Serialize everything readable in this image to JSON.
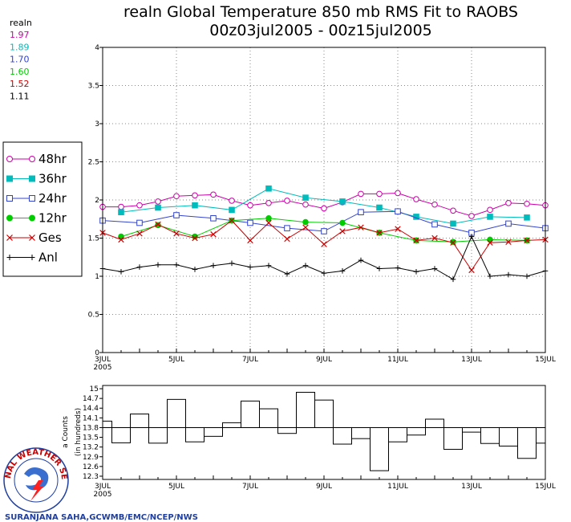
{
  "header": {
    "title_line1": "realn Global Temperature 850 mb RMS Fit to RAOBS",
    "title_line2": "00z03jul2005 - 00z15jul2005",
    "means_label": "realn",
    "means": [
      {
        "value": "1.97",
        "color": "#cc00aa"
      },
      {
        "value": "1.89",
        "color": "#00bcbc"
      },
      {
        "value": "1.70",
        "color": "#3344cc"
      },
      {
        "value": "1.60",
        "color": "#00cc00"
      },
      {
        "value": "1.52",
        "color": "#cc0000"
      },
      {
        "value": "1.11",
        "color": "#000000"
      }
    ]
  },
  "legend": {
    "items": [
      {
        "label": "48hr",
        "color": "#cc00aa",
        "marker": "open-circle"
      },
      {
        "label": "36hr",
        "color": "#00bcbc",
        "marker": "filled-square"
      },
      {
        "label": "24hr",
        "color": "#3344cc",
        "marker": "open-square"
      },
      {
        "label": "12hr",
        "color": "#00cc00",
        "marker": "filled-circle"
      },
      {
        "label": "Ges",
        "color": "#cc0000",
        "marker": "x"
      },
      {
        "label": "Anl",
        "color": "#000000",
        "marker": "plus"
      }
    ]
  },
  "credit": "SURANJANA SAHA,GCWMB/EMC/NCEP/NWS",
  "logo_text": "NATIONAL WEATHER SERVICE",
  "chart_data": [
    {
      "type": "line",
      "title": "realn Global Temperature 850 mb RMS Fit to RAOBS",
      "xlim": [
        3,
        15
      ],
      "ylim": [
        0,
        4
      ],
      "x_ticks": [
        3,
        5,
        7,
        9,
        11,
        13,
        15
      ],
      "x_tick_labels": [
        "3JUL",
        "5JUL",
        "7JUL",
        "9JUL",
        "11JUL",
        "13JUL",
        "15JUL"
      ],
      "x_sub_label": "2005",
      "y_ticks": [
        0,
        0.5,
        1,
        1.5,
        2,
        2.5,
        3,
        3.5,
        4
      ],
      "y_tick_labels": [
        "0",
        "0.5",
        "1",
        "1.5",
        "2",
        "2.5",
        "3",
        "3.5",
        "4"
      ],
      "grid": true,
      "series": [
        {
          "name": "48hr",
          "color": "#cc00aa",
          "marker": "open-circle",
          "points": [
            [
              3,
              1.91
            ],
            [
              3.5,
              1.91
            ],
            [
              4,
              1.93
            ],
            [
              4.5,
              1.98
            ],
            [
              5,
              2.05
            ],
            [
              5.5,
              2.06
            ],
            [
              6,
              2.07
            ],
            [
              6.5,
              1.99
            ],
            [
              7,
              1.93
            ],
            [
              7.5,
              1.96
            ],
            [
              8,
              1.99
            ],
            [
              8.5,
              1.94
            ],
            [
              9,
              1.89
            ],
            [
              9.5,
              1.97
            ],
            [
              10,
              2.08
            ],
            [
              10.5,
              2.08
            ],
            [
              11,
              2.09
            ],
            [
              11.5,
              2.01
            ],
            [
              12,
              1.94
            ],
            [
              12.5,
              1.86
            ],
            [
              13,
              1.79
            ],
            [
              13.5,
              1.87
            ],
            [
              14,
              1.96
            ],
            [
              14.5,
              1.95
            ],
            [
              15,
              1.93
            ]
          ]
        },
        {
          "name": "36hr",
          "color": "#00bcbc",
          "marker": "filled-square",
          "points": [
            [
              3.5,
              1.84
            ],
            [
              4.5,
              1.9
            ],
            [
              5.5,
              1.93
            ],
            [
              6.5,
              1.87
            ],
            [
              7.5,
              2.15
            ],
            [
              8.5,
              2.03
            ],
            [
              9.5,
              1.98
            ],
            [
              10.5,
              1.9
            ],
            [
              11.5,
              1.78
            ],
            [
              12.5,
              1.69
            ],
            [
              13.5,
              1.78
            ],
            [
              14.5,
              1.77
            ]
          ]
        },
        {
          "name": "24hr",
          "color": "#3344cc",
          "marker": "open-square",
          "points": [
            [
              3,
              1.73
            ],
            [
              4,
              1.7
            ],
            [
              5,
              1.8
            ],
            [
              6,
              1.76
            ],
            [
              7,
              1.7
            ],
            [
              8,
              1.63
            ],
            [
              9,
              1.59
            ],
            [
              10,
              1.84
            ],
            [
              11,
              1.85
            ],
            [
              12,
              1.68
            ],
            [
              13,
              1.57
            ],
            [
              14,
              1.69
            ],
            [
              15,
              1.63
            ]
          ]
        },
        {
          "name": "12hr",
          "color": "#00cc00",
          "marker": "filled-circle",
          "points": [
            [
              3.5,
              1.52
            ],
            [
              4.5,
              1.67
            ],
            [
              5.5,
              1.52
            ],
            [
              6.5,
              1.73
            ],
            [
              7.5,
              1.76
            ],
            [
              8.5,
              1.71
            ],
            [
              9.5,
              1.7
            ],
            [
              10.5,
              1.57
            ],
            [
              11.5,
              1.47
            ],
            [
              12.5,
              1.45
            ],
            [
              13.5,
              1.48
            ],
            [
              14.5,
              1.47
            ]
          ]
        },
        {
          "name": "Ges",
          "color": "#cc0000",
          "marker": "x",
          "points": [
            [
              3,
              1.57
            ],
            [
              3.5,
              1.48
            ],
            [
              4,
              1.56
            ],
            [
              4.5,
              1.68
            ],
            [
              5,
              1.56
            ],
            [
              5.5,
              1.5
            ],
            [
              6,
              1.55
            ],
            [
              6.5,
              1.73
            ],
            [
              7,
              1.47
            ],
            [
              7.5,
              1.7
            ],
            [
              8,
              1.49
            ],
            [
              8.5,
              1.64
            ],
            [
              9,
              1.42
            ],
            [
              9.5,
              1.59
            ],
            [
              10,
              1.64
            ],
            [
              10.5,
              1.57
            ],
            [
              11,
              1.62
            ],
            [
              11.5,
              1.47
            ],
            [
              12,
              1.5
            ],
            [
              12.5,
              1.44
            ],
            [
              13,
              1.08
            ],
            [
              13.5,
              1.44
            ],
            [
              14,
              1.45
            ],
            [
              14.5,
              1.47
            ],
            [
              15,
              1.48
            ]
          ]
        },
        {
          "name": "Anl",
          "color": "#000000",
          "marker": "plus",
          "points": [
            [
              3,
              1.1
            ],
            [
              3.5,
              1.06
            ],
            [
              4,
              1.12
            ],
            [
              4.5,
              1.15
            ],
            [
              5,
              1.15
            ],
            [
              5.5,
              1.09
            ],
            [
              6,
              1.14
            ],
            [
              6.5,
              1.17
            ],
            [
              7,
              1.12
            ],
            [
              7.5,
              1.14
            ],
            [
              8,
              1.03
            ],
            [
              8.5,
              1.14
            ],
            [
              9,
              1.04
            ],
            [
              9.5,
              1.07
            ],
            [
              10,
              1.21
            ],
            [
              10.5,
              1.1
            ],
            [
              11,
              1.11
            ],
            [
              11.5,
              1.06
            ],
            [
              12,
              1.1
            ],
            [
              12.5,
              0.96
            ],
            [
              13,
              1.52
            ],
            [
              13.5,
              1.0
            ],
            [
              14,
              1.02
            ],
            [
              14.5,
              1.0
            ],
            [
              15,
              1.07
            ]
          ]
        }
      ]
    },
    {
      "type": "bar",
      "ylabel": "Counts (in hundreds)",
      "ylabel_visible": "a Counts",
      "ylabel_line2": "(in hundreds)",
      "xlim": [
        3,
        15
      ],
      "ylim": [
        12.2,
        15.1
      ],
      "reference_line": 13.8,
      "x_ticks": [
        3,
        5,
        7,
        9,
        11,
        13,
        15
      ],
      "x_tick_labels": [
        "3JUL",
        "5JUL",
        "7JUL",
        "9JUL",
        "11JUL",
        "13JUL",
        "15JUL"
      ],
      "x_sub_label": "2005",
      "y_ticks": [
        12.3,
        12.6,
        12.9,
        13.2,
        13.5,
        13.8,
        14.1,
        14.4,
        14.7,
        15
      ],
      "y_tick_labels": [
        "12.3",
        "12.6",
        "12.9",
        "13.2",
        "13.5",
        "13.8",
        "14.1",
        "14.4",
        "14.7",
        "15"
      ],
      "bins": [
        [
          3,
          3.25,
          14.0
        ],
        [
          3.25,
          3.75,
          13.33
        ],
        [
          3.75,
          4.25,
          14.22
        ],
        [
          4.25,
          4.75,
          13.32
        ],
        [
          4.75,
          5.25,
          14.67
        ],
        [
          5.25,
          5.75,
          13.36
        ],
        [
          5.75,
          6.25,
          13.53
        ],
        [
          6.25,
          6.75,
          13.95
        ],
        [
          6.75,
          7.25,
          14.62
        ],
        [
          7.25,
          7.75,
          14.38
        ],
        [
          7.75,
          8.25,
          13.62
        ],
        [
          8.25,
          8.75,
          14.89
        ],
        [
          8.75,
          9.25,
          14.65
        ],
        [
          9.25,
          9.75,
          13.29
        ],
        [
          9.75,
          10.25,
          13.46
        ],
        [
          10.25,
          10.75,
          12.47
        ],
        [
          10.75,
          11.25,
          13.36
        ],
        [
          11.25,
          11.75,
          13.57
        ],
        [
          11.75,
          12.25,
          14.06
        ],
        [
          12.25,
          12.75,
          13.13
        ],
        [
          12.75,
          13.25,
          13.66
        ],
        [
          13.25,
          13.75,
          13.31
        ],
        [
          13.75,
          14.25,
          13.23
        ],
        [
          14.25,
          14.75,
          12.85
        ],
        [
          14.75,
          15,
          13.32
        ]
      ]
    }
  ]
}
